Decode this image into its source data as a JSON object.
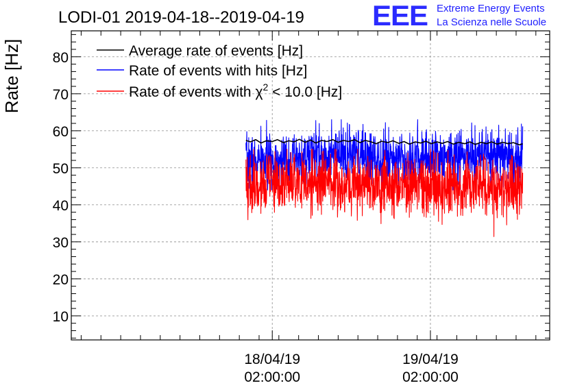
{
  "header": {
    "title": "LODI-01 2019-04-18--2019-04-19",
    "logo_text": "EEE",
    "logo_line1": "Extreme Energy Events",
    "logo_line2": "La Scienza nelle Scuole"
  },
  "colors": {
    "average": "#000000",
    "hits": "#0000ff",
    "chi2": "#ff0000",
    "logo": "#2020ff",
    "grid": "#999999"
  },
  "chart_data": {
    "type": "line",
    "title": "LODI-01 2019-04-18--2019-04-19",
    "xlabel": "",
    "ylabel": "Rate [Hz]",
    "x_unit": "hours since 2019-04-17 00:00:00",
    "xlim": [
      -4.5,
      68.1
    ],
    "ylim": [
      3.5,
      87
    ],
    "x_ticks": [
      {
        "x": 26,
        "line1": "18/04/19",
        "line2": "02:00:00"
      },
      {
        "x": 50,
        "line1": "19/04/19",
        "line2": "02:00:00"
      }
    ],
    "y_ticks": [
      10,
      20,
      30,
      40,
      50,
      60,
      70,
      80
    ],
    "grid": true,
    "legend_position": "top-left",
    "legend": [
      {
        "series": "average",
        "label": "Average rate of events [Hz]"
      },
      {
        "series": "hits",
        "label": "Rate of events with hits [Hz]"
      },
      {
        "series": "chi2",
        "label_pre": "Rate of events with ",
        "chi_symbol": "χ",
        "chi_exp": "2",
        "label_post": " < 10.0 [Hz]"
      }
    ],
    "sampling": {
      "x_start": 22.0,
      "x_end": 64.0,
      "step_minutes": 2
    },
    "series": [
      {
        "name": "Average rate of events [Hz]",
        "key": "average",
        "kind": "smooth",
        "points": [
          [
            22.0,
            57.4
          ],
          [
            22.7,
            57.0
          ],
          [
            23.5,
            57.6
          ],
          [
            24.3,
            56.7
          ],
          [
            25.1,
            57.3
          ],
          [
            26.0,
            57.1
          ],
          [
            26.8,
            57.6
          ],
          [
            27.7,
            56.8
          ],
          [
            28.5,
            57.3
          ],
          [
            29.3,
            57.0
          ],
          [
            30.1,
            57.7
          ],
          [
            31.0,
            56.9
          ],
          [
            31.8,
            57.5
          ],
          [
            32.6,
            56.7
          ],
          [
            33.5,
            57.4
          ],
          [
            34.3,
            57.1
          ],
          [
            35.2,
            57.6
          ],
          [
            36.0,
            56.9
          ],
          [
            36.8,
            57.4
          ],
          [
            37.6,
            57.1
          ],
          [
            38.5,
            57.6
          ],
          [
            39.3,
            56.8
          ],
          [
            40.1,
            57.4
          ],
          [
            41.0,
            57.0
          ],
          [
            41.8,
            56.5
          ],
          [
            42.6,
            57.2
          ],
          [
            43.5,
            56.8
          ],
          [
            44.3,
            57.3
          ],
          [
            45.2,
            56.6
          ],
          [
            46.0,
            57.1
          ],
          [
            46.8,
            56.4
          ],
          [
            47.7,
            57.0
          ],
          [
            48.5,
            56.7
          ],
          [
            49.3,
            57.2
          ],
          [
            50.1,
            56.5
          ],
          [
            51.0,
            57.0
          ],
          [
            51.8,
            56.6
          ],
          [
            52.6,
            57.1
          ],
          [
            53.5,
            56.4
          ],
          [
            54.3,
            56.9
          ],
          [
            55.2,
            56.5
          ],
          [
            56.0,
            57.0
          ],
          [
            56.8,
            56.3
          ],
          [
            57.7,
            56.9
          ],
          [
            58.5,
            56.5
          ],
          [
            59.3,
            57.0
          ],
          [
            60.1,
            56.4
          ],
          [
            61.0,
            56.9
          ],
          [
            61.8,
            56.5
          ],
          [
            62.6,
            56.8
          ],
          [
            63.5,
            56.2
          ],
          [
            64.0,
            56.5
          ]
        ]
      },
      {
        "name": "Rate of events with hits [Hz]",
        "key": "hits",
        "kind": "noisy",
        "baseline_segments": [
          [
            22.0,
            51.5
          ],
          [
            31.0,
            51.8
          ],
          [
            31.5,
            53.5
          ],
          [
            47.0,
            53.0
          ],
          [
            64.0,
            53.0
          ]
        ],
        "std_dev": 3.6,
        "range": [
          44,
          63
        ],
        "seed": 7
      },
      {
        "name": "Rate of events with χ2 < 10.0 [Hz]",
        "key": "chi2",
        "kind": "noisy",
        "baseline_segments": [
          [
            22.0,
            45.5
          ],
          [
            31.0,
            45.8
          ],
          [
            31.5,
            46.3
          ],
          [
            40.0,
            45.5
          ],
          [
            47.0,
            45.0
          ],
          [
            64.0,
            44.5
          ]
        ],
        "std_dev": 4.0,
        "range": [
          30.5,
          55
        ],
        "seed": 19
      }
    ]
  }
}
